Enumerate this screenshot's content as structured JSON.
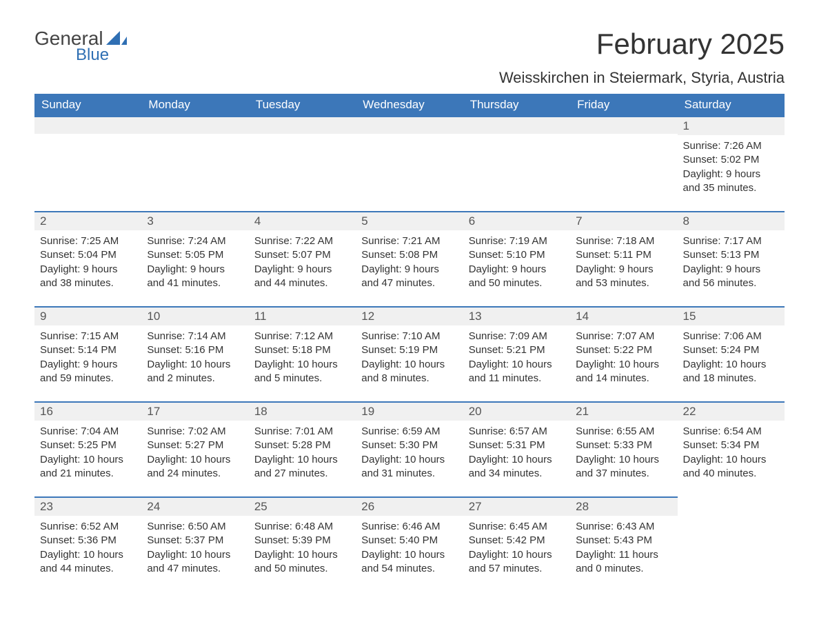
{
  "logo": {
    "word1": "General",
    "word2": "Blue",
    "accent": "#2f6fb3",
    "text_color": "#444"
  },
  "title": "February 2025",
  "subtitle": "Weisskirchen in Steiermark, Styria, Austria",
  "colors": {
    "header_bg": "#3c77b9",
    "header_text": "#ffffff",
    "daybar_bg": "#f0f0f0",
    "daybar_border": "#3c77b9",
    "body_text": "#333333",
    "page_bg": "#ffffff"
  },
  "typography": {
    "title_fontsize": 42,
    "subtitle_fontsize": 22,
    "dayhead_fontsize": 17,
    "cell_fontsize": 15
  },
  "day_headers": [
    "Sunday",
    "Monday",
    "Tuesday",
    "Wednesday",
    "Thursday",
    "Friday",
    "Saturday"
  ],
  "weeks": [
    [
      null,
      null,
      null,
      null,
      null,
      null,
      {
        "n": "1",
        "sunrise": "7:26 AM",
        "sunset": "5:02 PM",
        "daylight": "9 hours and 35 minutes."
      }
    ],
    [
      {
        "n": "2",
        "sunrise": "7:25 AM",
        "sunset": "5:04 PM",
        "daylight": "9 hours and 38 minutes."
      },
      {
        "n": "3",
        "sunrise": "7:24 AM",
        "sunset": "5:05 PM",
        "daylight": "9 hours and 41 minutes."
      },
      {
        "n": "4",
        "sunrise": "7:22 AM",
        "sunset": "5:07 PM",
        "daylight": "9 hours and 44 minutes."
      },
      {
        "n": "5",
        "sunrise": "7:21 AM",
        "sunset": "5:08 PM",
        "daylight": "9 hours and 47 minutes."
      },
      {
        "n": "6",
        "sunrise": "7:19 AM",
        "sunset": "5:10 PM",
        "daylight": "9 hours and 50 minutes."
      },
      {
        "n": "7",
        "sunrise": "7:18 AM",
        "sunset": "5:11 PM",
        "daylight": "9 hours and 53 minutes."
      },
      {
        "n": "8",
        "sunrise": "7:17 AM",
        "sunset": "5:13 PM",
        "daylight": "9 hours and 56 minutes."
      }
    ],
    [
      {
        "n": "9",
        "sunrise": "7:15 AM",
        "sunset": "5:14 PM",
        "daylight": "9 hours and 59 minutes."
      },
      {
        "n": "10",
        "sunrise": "7:14 AM",
        "sunset": "5:16 PM",
        "daylight": "10 hours and 2 minutes."
      },
      {
        "n": "11",
        "sunrise": "7:12 AM",
        "sunset": "5:18 PM",
        "daylight": "10 hours and 5 minutes."
      },
      {
        "n": "12",
        "sunrise": "7:10 AM",
        "sunset": "5:19 PM",
        "daylight": "10 hours and 8 minutes."
      },
      {
        "n": "13",
        "sunrise": "7:09 AM",
        "sunset": "5:21 PM",
        "daylight": "10 hours and 11 minutes."
      },
      {
        "n": "14",
        "sunrise": "7:07 AM",
        "sunset": "5:22 PM",
        "daylight": "10 hours and 14 minutes."
      },
      {
        "n": "15",
        "sunrise": "7:06 AM",
        "sunset": "5:24 PM",
        "daylight": "10 hours and 18 minutes."
      }
    ],
    [
      {
        "n": "16",
        "sunrise": "7:04 AM",
        "sunset": "5:25 PM",
        "daylight": "10 hours and 21 minutes."
      },
      {
        "n": "17",
        "sunrise": "7:02 AM",
        "sunset": "5:27 PM",
        "daylight": "10 hours and 24 minutes."
      },
      {
        "n": "18",
        "sunrise": "7:01 AM",
        "sunset": "5:28 PM",
        "daylight": "10 hours and 27 minutes."
      },
      {
        "n": "19",
        "sunrise": "6:59 AM",
        "sunset": "5:30 PM",
        "daylight": "10 hours and 31 minutes."
      },
      {
        "n": "20",
        "sunrise": "6:57 AM",
        "sunset": "5:31 PM",
        "daylight": "10 hours and 34 minutes."
      },
      {
        "n": "21",
        "sunrise": "6:55 AM",
        "sunset": "5:33 PM",
        "daylight": "10 hours and 37 minutes."
      },
      {
        "n": "22",
        "sunrise": "6:54 AM",
        "sunset": "5:34 PM",
        "daylight": "10 hours and 40 minutes."
      }
    ],
    [
      {
        "n": "23",
        "sunrise": "6:52 AM",
        "sunset": "5:36 PM",
        "daylight": "10 hours and 44 minutes."
      },
      {
        "n": "24",
        "sunrise": "6:50 AM",
        "sunset": "5:37 PM",
        "daylight": "10 hours and 47 minutes."
      },
      {
        "n": "25",
        "sunrise": "6:48 AM",
        "sunset": "5:39 PM",
        "daylight": "10 hours and 50 minutes."
      },
      {
        "n": "26",
        "sunrise": "6:46 AM",
        "sunset": "5:40 PM",
        "daylight": "10 hours and 54 minutes."
      },
      {
        "n": "27",
        "sunrise": "6:45 AM",
        "sunset": "5:42 PM",
        "daylight": "10 hours and 57 minutes."
      },
      {
        "n": "28",
        "sunrise": "6:43 AM",
        "sunset": "5:43 PM",
        "daylight": "11 hours and 0 minutes."
      },
      null
    ]
  ],
  "labels": {
    "sunrise": "Sunrise: ",
    "sunset": "Sunset: ",
    "daylight": "Daylight: "
  }
}
